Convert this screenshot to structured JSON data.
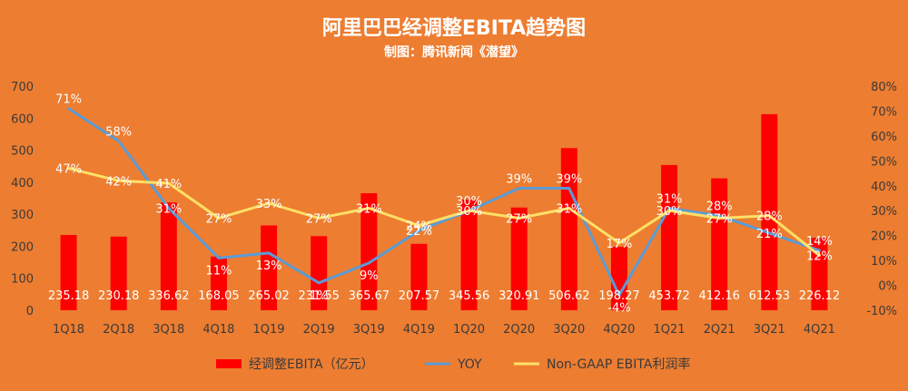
{
  "colors": {
    "background": "#ED7D31",
    "bar": "#FF0000",
    "yoy_line": "#5B9BD5",
    "margin_line": "#FFE066",
    "text": "#FFFFFF",
    "axis_text": "#3A3A3A"
  },
  "chart_data": {
    "type": "bar",
    "title": "阿里巴巴经调整EBITA趋势图",
    "subtitle": "制图：腾讯新闻《潜望》",
    "categories": [
      "1Q18",
      "2Q18",
      "3Q18",
      "4Q18",
      "1Q19",
      "2Q19",
      "3Q19",
      "4Q19",
      "1Q20",
      "2Q20",
      "3Q20",
      "4Q20",
      "1Q21",
      "2Q21",
      "3Q21",
      "4Q21"
    ],
    "y_left": {
      "min": 0,
      "max": 700,
      "ticks": [
        "0",
        "100",
        "200",
        "300",
        "400",
        "500",
        "600",
        "700"
      ]
    },
    "y_right": {
      "min": -10,
      "max": 80,
      "ticks": [
        "-10%",
        "0%",
        "10%",
        "20%",
        "30%",
        "40%",
        "50%",
        "60%",
        "70%",
        "80%"
      ]
    },
    "grid": false,
    "legend_position": "bottom",
    "series": [
      {
        "name": "经调整EBITA（亿元）",
        "type": "bar",
        "axis": "left",
        "values": [
          235.18,
          230.18,
          336.62,
          168.05,
          265.02,
          231.55,
          365.67,
          207.57,
          345.56,
          320.91,
          506.62,
          198.27,
          453.72,
          412.16,
          612.53,
          226.12
        ],
        "labels": [
          "235.18",
          "230.18",
          "336.62",
          "168.05",
          "265.02",
          "231.55",
          "365.67",
          "207.57",
          "345.56",
          "320.91",
          "506.62",
          "198.27",
          "453.72",
          "412.16",
          "612.53",
          "226.12"
        ]
      },
      {
        "name": "YOY",
        "type": "line",
        "axis": "right",
        "values": [
          71,
          58,
          31,
          11,
          13,
          1,
          9,
          22,
          30,
          39,
          39,
          -4,
          31,
          28,
          21,
          14
        ],
        "labels": [
          "71%",
          "58%",
          "31%",
          "11%",
          "13%",
          "1%",
          "9%",
          "22%",
          "30%",
          "39%",
          "39%",
          "-4%",
          "31%",
          "28%",
          "21%",
          "14%"
        ]
      },
      {
        "name": "Non-GAAP EBITA利润率",
        "type": "line",
        "axis": "right",
        "values": [
          47,
          42,
          41,
          27,
          33,
          27,
          31,
          24,
          30,
          27,
          31,
          17,
          30,
          27,
          28,
          12
        ],
        "labels": [
          "47%",
          "42%",
          "41%",
          "27%",
          "33%",
          "27%",
          "31%",
          "24%",
          "30%",
          "27%",
          "31%",
          "17%",
          "30%",
          "27%",
          "28%",
          "12%"
        ]
      }
    ]
  }
}
